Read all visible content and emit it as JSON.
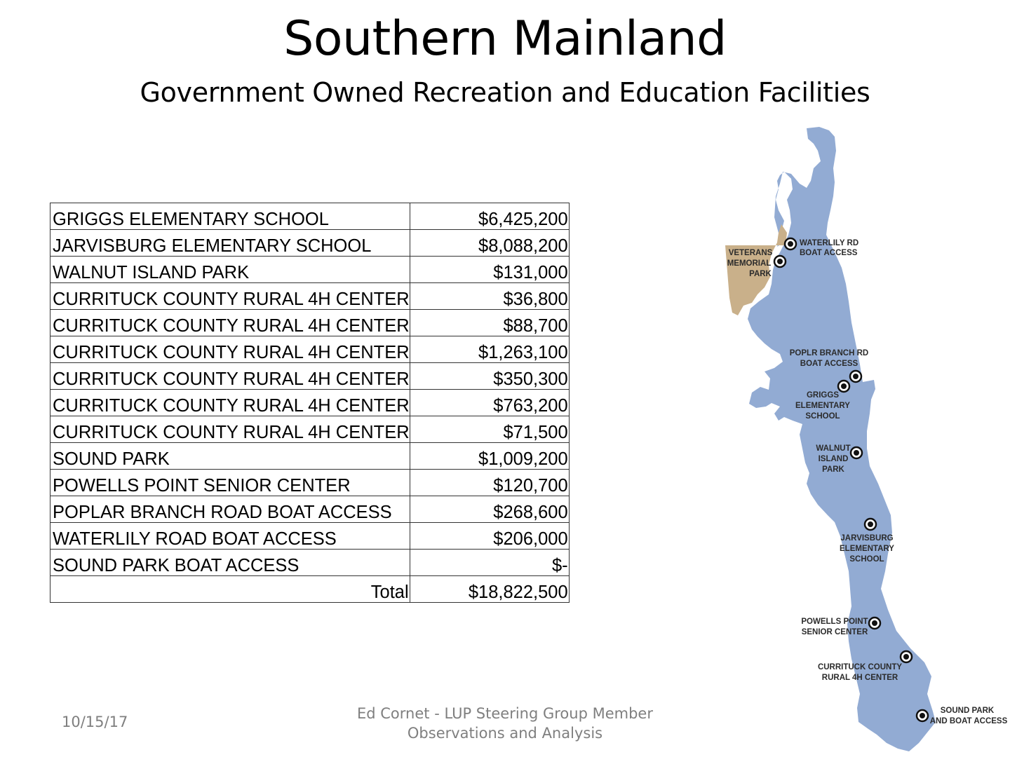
{
  "header": {
    "title": "Southern Mainland",
    "subtitle": "Government Owned Recreation and Education Facilities"
  },
  "table": {
    "rows": [
      {
        "name": "GRIGGS ELEMENTARY SCHOOL",
        "value": "$6,425,200"
      },
      {
        "name": "JARVISBURG ELEMENTARY SCHOOL",
        "value": "$8,088,200"
      },
      {
        "name": "WALNUT ISLAND PARK",
        "value": "$131,000"
      },
      {
        "name": "CURRITUCK COUNTY RURAL 4H CENTER",
        "value": "$36,800"
      },
      {
        "name": "CURRITUCK COUNTY RURAL 4H CENTER",
        "value": "$88,700"
      },
      {
        "name": "CURRITUCK COUNTY RURAL 4H CENTER",
        "value": "$1,263,100"
      },
      {
        "name": "CURRITUCK COUNTY RURAL 4H CENTER",
        "value": "$350,300"
      },
      {
        "name": "CURRITUCK COUNTY RURAL 4H CENTER",
        "value": "$763,200"
      },
      {
        "name": "CURRITUCK COUNTY RURAL 4H CENTER",
        "value": "$71,500"
      },
      {
        "name": "SOUND PARK",
        "value": "$1,009,200"
      },
      {
        "name": "POWELLS POINT SENIOR CENTER",
        "value": "$120,700"
      },
      {
        "name": "POPLAR BRANCH ROAD BOAT ACCESS",
        "value": "$268,600"
      },
      {
        "name": "WATERLILY ROAD BOAT ACCESS",
        "value": "$206,000"
      },
      {
        "name": "SOUND PARK BOAT ACCESS",
        "value": "$-"
      }
    ],
    "total_label": "Total",
    "total_value": "$18,822,500"
  },
  "map": {
    "land_color": "#92abd3",
    "park_color": "#c9b08a",
    "labels": {
      "waterlily_1": "WATERLILY RD",
      "waterlily_2": "BOAT ACCESS",
      "veterans_1": "VETERANS",
      "veterans_2": "MEMORIAL",
      "veterans_3": "PARK",
      "poplar_1": "POPLR BRANCH RD",
      "poplar_2": "BOAT ACCESS",
      "griggs_1": "GRIGGS",
      "griggs_2": "ELEMENTARY",
      "griggs_3": "SCHOOL",
      "walnut_1": "WALNUT",
      "walnut_2": "ISLAND",
      "walnut_3": "PARK",
      "jarvisburg_1": "JARVISBURG",
      "jarvisburg_2": "ELEMENTARY",
      "jarvisburg_3": "SCHOOL",
      "powells_1": "POWELLS POINT",
      "powells_2": "SENIOR CENTER",
      "currituck_1": "CURRITUCK COUNTY",
      "currituck_2": "RURAL 4H CENTER",
      "sound_1": "SOUND PARK",
      "sound_2": "AND BOAT ACCESS"
    }
  },
  "footer": {
    "date": "10/15/17",
    "line1": "Ed Cornet - LUP Steering Group Member",
    "line2": "Observations and Analysis"
  }
}
